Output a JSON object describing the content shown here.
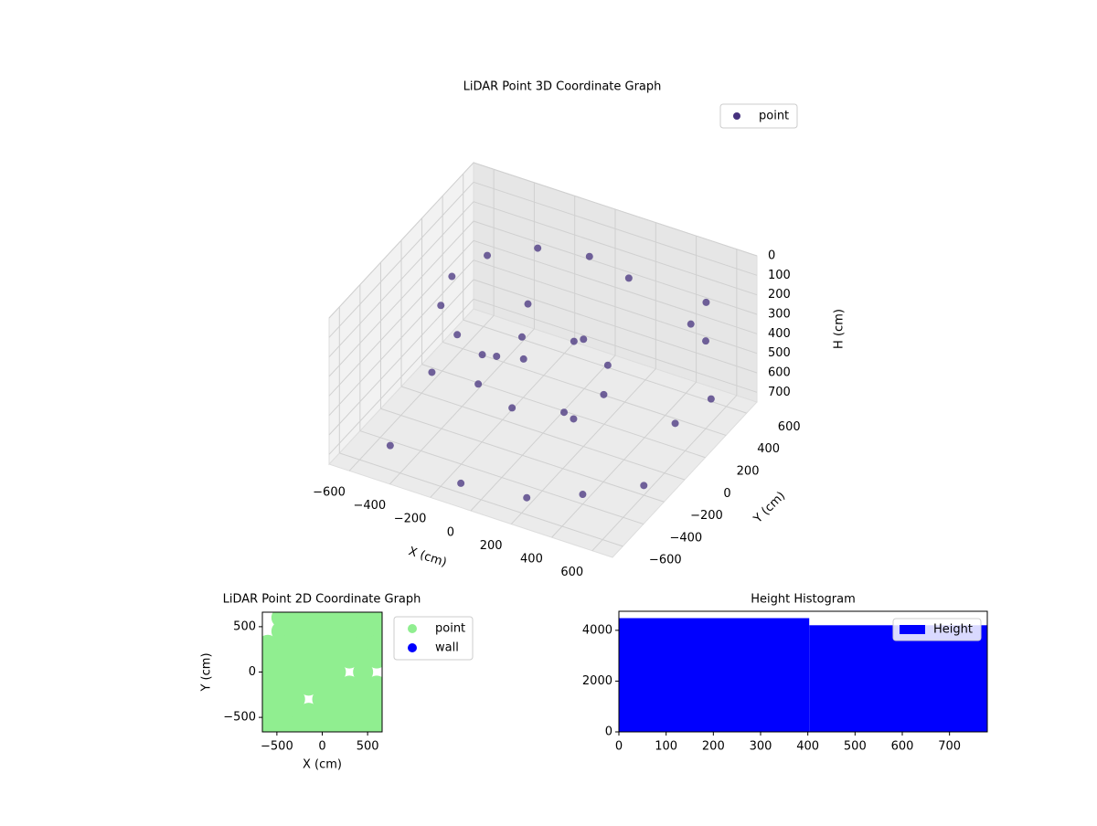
{
  "chart_data": [
    {
      "type": "scatter3d",
      "title": "LiDAR Point 3D Coordinate Graph",
      "xlabel": "X (cm)",
      "ylabel": "Y (cm)",
      "zlabel": "H (cm)",
      "xlim": [
        -700,
        700
      ],
      "ylim": [
        -700,
        700
      ],
      "zlim": [
        750,
        0
      ],
      "xticks": [
        {
          "value": -600,
          "label": "−600"
        },
        {
          "value": -400,
          "label": "−400"
        },
        {
          "value": -200,
          "label": "−200"
        },
        0,
        200,
        400,
        600
      ],
      "yticks": [
        {
          "value": -600,
          "label": "−600"
        },
        {
          "value": -400,
          "label": "−400"
        },
        {
          "value": -200,
          "label": "−200"
        },
        0,
        200,
        400,
        600
      ],
      "zticks": [
        0,
        100,
        200,
        300,
        400,
        500,
        600,
        700
      ],
      "legend": "upper right",
      "series": [
        {
          "name": "point",
          "color": "#46327e",
          "x": [
            0,
            -225,
            -390,
            -450,
            -390,
            -225,
            0,
            225,
            300,
            212,
            0,
            -212,
            -300,
            -212,
            0,
            212,
            -500,
            -300,
            200,
            500,
            600,
            -600,
            100,
            400,
            -100,
            550,
            500,
            600,
            450,
            200,
            -100
          ],
          "y": [
            450,
            390,
            225,
            0,
            -225,
            -390,
            -450,
            390,
            0,
            212,
            300,
            212,
            0,
            -212,
            -300,
            -212,
            -500,
            400,
            -550,
            300,
            -200,
            100,
            100,
            -400,
            -600,
            550,
            600,
            400,
            550,
            0,
            50
          ],
          "z": [
            100,
            100,
            100,
            100,
            100,
            100,
            100,
            100,
            450,
            450,
            450,
            450,
            450,
            450,
            450,
            450,
            700,
            700,
            700,
            700,
            700,
            700,
            700,
            700,
            700,
            700,
            250,
            300,
            350,
            200,
            150
          ]
        }
      ]
    },
    {
      "type": "scatter",
      "title": "LiDAR Point 2D Coordinate Graph",
      "xlabel": "X (cm)",
      "ylabel": "Y (cm)",
      "xlim": [
        -660,
        660
      ],
      "ylim": [
        -660,
        660
      ],
      "xticks": [
        {
          "value": -500,
          "label": "−500"
        },
        0,
        500
      ],
      "yticks": [
        {
          "value": -500,
          "label": "−500"
        },
        0,
        500
      ],
      "legend": "outside right",
      "series": [
        {
          "name": "point",
          "color": "#90ee90",
          "x": [
            -450,
            -300,
            -150,
            0,
            150,
            300,
            450,
            600,
            -450,
            -300,
            -150,
            0,
            150,
            300,
            450,
            600,
            -600,
            -450,
            -300,
            -150,
            0,
            150,
            300,
            450,
            600,
            -600,
            -450,
            -300,
            -150,
            0,
            150,
            300,
            450,
            600,
            -600,
            -450,
            -300,
            -150,
            0,
            150,
            450,
            -600,
            -450,
            -300,
            -150,
            0,
            150,
            300,
            450,
            600,
            -600,
            -450,
            -300,
            0,
            150,
            300,
            450,
            600,
            -600,
            -450,
            -300,
            -150,
            0,
            150,
            300,
            450,
            600,
            -600,
            -450,
            -300,
            -150,
            0,
            150,
            300,
            450,
            600
          ],
          "y": [
            600,
            600,
            600,
            600,
            600,
            600,
            600,
            600,
            450,
            450,
            450,
            450,
            450,
            450,
            450,
            450,
            300,
            300,
            300,
            300,
            300,
            300,
            300,
            300,
            300,
            150,
            150,
            150,
            150,
            150,
            150,
            150,
            150,
            150,
            0,
            0,
            0,
            0,
            0,
            0,
            0,
            -150,
            -150,
            -150,
            -150,
            -150,
            -150,
            -150,
            -150,
            -150,
            -300,
            -300,
            -300,
            -300,
            -300,
            -300,
            -300,
            -300,
            -450,
            -450,
            -450,
            -450,
            -450,
            -450,
            -450,
            -450,
            -450,
            -600,
            -600,
            -600,
            -600,
            -600,
            -600,
            -600,
            -600,
            -600
          ]
        },
        {
          "name": "wall",
          "color": "#0000ff",
          "x": [],
          "y": []
        }
      ]
    },
    {
      "type": "histogram",
      "title": "Height Histogram",
      "name": "Height",
      "color": "#0000ff",
      "bins": [
        0,
        403,
        780
      ],
      "counts": [
        4480,
        4200
      ],
      "xlim": [
        0,
        780
      ],
      "ylim": [
        0,
        4750
      ],
      "xticks": [
        0,
        100,
        200,
        300,
        400,
        500,
        600,
        700
      ],
      "yticks": [
        0,
        2000,
        4000
      ],
      "legend": "upper right"
    }
  ]
}
